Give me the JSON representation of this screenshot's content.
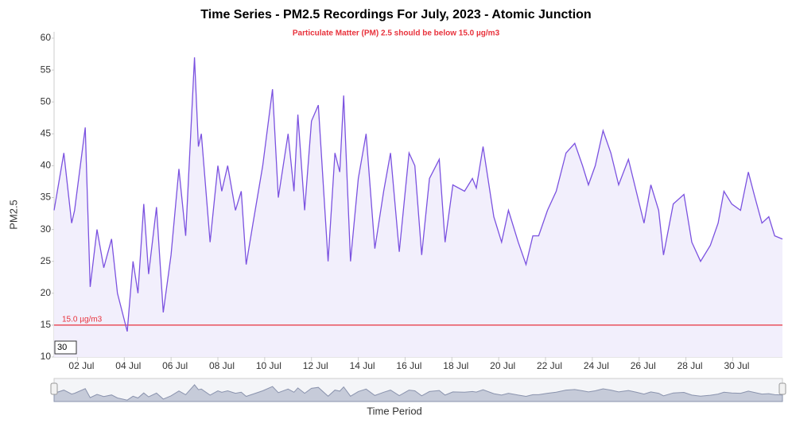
{
  "chart_data": {
    "type": "line",
    "title": "Time Series - PM2.5 Recordings For July, 2023 - Atomic Junction",
    "subtitle": "Particulate Matter (PM) 2.5 should be below 15.0 µg/m3",
    "y_label": "PM2.5",
    "x_label": "Time Period",
    "range_input": "30",
    "threshold": {
      "value": 15,
      "label": "15.0 µg/m3",
      "color": "#e8323c"
    },
    "xlim": [
      "2023-07-01T00:00",
      "2023-08-01T03:00"
    ],
    "xticks": [
      {
        "value": "2023-07-02T00:00",
        "label": "02 Jul"
      },
      {
        "value": "2023-07-04T00:00",
        "label": "04 Jul"
      },
      {
        "value": "2023-07-06T00:00",
        "label": "06 Jul"
      },
      {
        "value": "2023-07-08T00:00",
        "label": "08 Jul"
      },
      {
        "value": "2023-07-10T00:00",
        "label": "10 Jul"
      },
      {
        "value": "2023-07-12T00:00",
        "label": "12 Jul"
      },
      {
        "value": "2023-07-14T00:00",
        "label": "14 Jul"
      },
      {
        "value": "2023-07-16T00:00",
        "label": "16 Jul"
      },
      {
        "value": "2023-07-18T00:00",
        "label": "18 Jul"
      },
      {
        "value": "2023-07-20T00:00",
        "label": "20 Jul"
      },
      {
        "value": "2023-07-22T00:00",
        "label": "22 Jul"
      },
      {
        "value": "2023-07-24T00:00",
        "label": "24 Jul"
      },
      {
        "value": "2023-07-26T00:00",
        "label": "26 Jul"
      },
      {
        "value": "2023-07-28T00:00",
        "label": "28 Jul"
      },
      {
        "value": "2023-07-30T00:00",
        "label": "30 Jul"
      }
    ],
    "ylim": [
      10,
      60
    ],
    "yticks": [
      10,
      15,
      20,
      25,
      30,
      35,
      40,
      45,
      50,
      55,
      60
    ],
    "x": [
      "2023-07-01T00:00",
      "2023-07-01T10:00",
      "2023-07-01T18:00",
      "2023-07-01T21:00",
      "2023-07-02T08:00",
      "2023-07-02T13:00",
      "2023-07-02T20:00",
      "2023-07-03T03:00",
      "2023-07-03T11:00",
      "2023-07-03T17:00",
      "2023-07-04T03:00",
      "2023-07-04T09:00",
      "2023-07-04T14:00",
      "2023-07-04T20:00",
      "2023-07-05T01:00",
      "2023-07-05T09:00",
      "2023-07-05T16:00",
      "2023-07-06T00:00",
      "2023-07-06T08:00",
      "2023-07-06T15:00",
      "2023-07-07T00:00",
      "2023-07-07T04:00",
      "2023-07-07T07:00",
      "2023-07-07T16:00",
      "2023-07-08T00:00",
      "2023-07-08T04:00",
      "2023-07-08T10:00",
      "2023-07-08T18:00",
      "2023-07-09T00:00",
      "2023-07-09T05:00",
      "2023-07-09T12:00",
      "2023-07-09T22:00",
      "2023-07-10T08:00",
      "2023-07-10T14:00",
      "2023-07-11T00:00",
      "2023-07-11T06:00",
      "2023-07-11T10:00",
      "2023-07-11T17:00",
      "2023-07-12T00:00",
      "2023-07-12T07:00",
      "2023-07-12T17:00",
      "2023-07-13T00:00",
      "2023-07-13T05:00",
      "2023-07-13T09:00",
      "2023-07-13T16:00",
      "2023-07-14T00:00",
      "2023-07-14T08:00",
      "2023-07-14T17:00",
      "2023-07-15T02:00",
      "2023-07-15T09:00",
      "2023-07-15T18:00",
      "2023-07-16T04:00",
      "2023-07-16T10:00",
      "2023-07-16T17:00",
      "2023-07-17T01:00",
      "2023-07-17T11:00",
      "2023-07-17T17:00",
      "2023-07-18T01:00",
      "2023-07-18T13:00",
      "2023-07-18T21:00",
      "2023-07-19T01:00",
      "2023-07-19T08:00",
      "2023-07-19T19:00",
      "2023-07-20T03:00",
      "2023-07-20T10:00",
      "2023-07-20T20:00",
      "2023-07-21T04:00",
      "2023-07-21T11:00",
      "2023-07-21T17:00",
      "2023-07-22T02:00",
      "2023-07-22T11:00",
      "2023-07-22T21:00",
      "2023-07-23T06:00",
      "2023-07-23T14:00",
      "2023-07-23T20:00",
      "2023-07-24T03:00",
      "2023-07-24T11:00",
      "2023-07-24T19:00",
      "2023-07-25T03:00",
      "2023-07-25T13:00",
      "2023-07-25T21:00",
      "2023-07-26T05:00",
      "2023-07-26T12:00",
      "2023-07-26T20:00",
      "2023-07-27T01:00",
      "2023-07-27T11:00",
      "2023-07-27T22:00",
      "2023-07-28T06:00",
      "2023-07-28T15:00",
      "2023-07-29T01:00",
      "2023-07-29T09:00",
      "2023-07-29T15:00",
      "2023-07-29T23:00",
      "2023-07-30T08:00",
      "2023-07-30T16:00",
      "2023-07-30T22:00",
      "2023-07-31T06:00",
      "2023-07-31T13:00",
      "2023-07-31T19:00",
      "2023-08-01T03:00"
    ],
    "series": [
      {
        "name": "PM2.5",
        "color": "#7b52e0",
        "fill": "#f2effc",
        "values": [
          33,
          42,
          31,
          33,
          46,
          21,
          30,
          24,
          28.5,
          20,
          14,
          25,
          20,
          34,
          23,
          33.5,
          17,
          26,
          39.5,
          29,
          57,
          43,
          45,
          28,
          40,
          36,
          40,
          33,
          36,
          24.5,
          31,
          40,
          52,
          35,
          45,
          36,
          48,
          33,
          47,
          49.5,
          25,
          42,
          39,
          51,
          25,
          38,
          45,
          27,
          36,
          42,
          26.5,
          42,
          40,
          26,
          38,
          41,
          28,
          37,
          36,
          38,
          36.5,
          43,
          32,
          28,
          33,
          28,
          24.5,
          29,
          29,
          33,
          36,
          42,
          43.5,
          40,
          37,
          40,
          45.5,
          42,
          37,
          41,
          36,
          31,
          37,
          33,
          26,
          34,
          35.5,
          28,
          25,
          27.5,
          31,
          36,
          34,
          33,
          39,
          35.5,
          31,
          32,
          29,
          28.5
        ]
      }
    ]
  }
}
